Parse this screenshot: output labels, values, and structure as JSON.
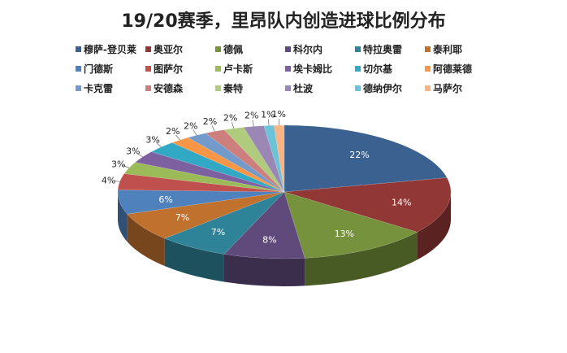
{
  "chart_data": {
    "type": "pie",
    "title": "19/20赛季，里昂队内创造进球比例分布",
    "legend_position": "top",
    "three_d": true,
    "slices": [
      {
        "name": "穆萨-登贝莱",
        "value": 22,
        "label": "22%",
        "color": "#3B6190"
      },
      {
        "name": "奥亚尔",
        "value": 14,
        "label": "14%",
        "color": "#913836"
      },
      {
        "name": "德佩",
        "value": 13,
        "label": "13%",
        "color": "#76923C"
      },
      {
        "name": "科尔内",
        "value": 8,
        "label": "8%",
        "color": "#5F4A7B"
      },
      {
        "name": "特拉奥雷",
        "value": 7,
        "label": "7%",
        "color": "#2F8398"
      },
      {
        "name": "泰利耶",
        "value": 7,
        "label": "7%",
        "color": "#C0712E"
      },
      {
        "name": "门德斯",
        "value": 6,
        "label": "6%",
        "color": "#4F81BD"
      },
      {
        "name": "图萨尔",
        "value": 4,
        "label": "4%",
        "color": "#C0504D"
      },
      {
        "name": "卢卡斯",
        "value": 3,
        "label": "3%",
        "color": "#9BBB59"
      },
      {
        "name": "埃卡姆比",
        "value": 3,
        "label": "3%",
        "color": "#7D60A0"
      },
      {
        "name": "切尔基",
        "value": 3,
        "label": "3%",
        "color": "#31A9C4"
      },
      {
        "name": "阿德莱德",
        "value": 2,
        "label": "2%",
        "color": "#F79646"
      },
      {
        "name": "卡克雷",
        "value": 2,
        "label": "2%",
        "color": "#729ACA"
      },
      {
        "name": "安德森",
        "value": 2,
        "label": "2%",
        "color": "#CD7F7D"
      },
      {
        "name": "秦特",
        "value": 2,
        "label": "2%",
        "color": "#B0CB7E"
      },
      {
        "name": "杜波",
        "value": 2,
        "label": "2%",
        "color": "#9A87B4"
      },
      {
        "name": "德纳伊尔",
        "value": 1,
        "label": "1%",
        "color": "#6CC3D8"
      },
      {
        "name": "马萨尔",
        "value": 1,
        "label": "1%",
        "color": "#F9B483"
      }
    ]
  }
}
